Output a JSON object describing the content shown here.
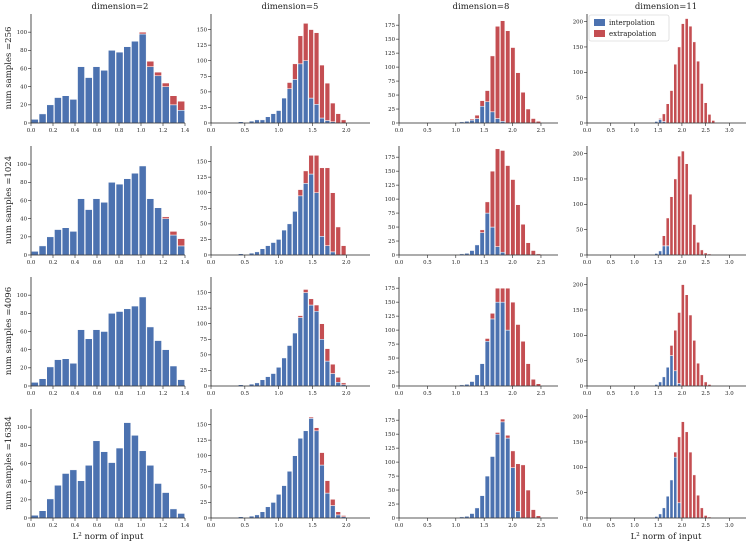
{
  "chart_data": {
    "type": "bar",
    "subtype": "stacked-histogram-grid",
    "column_titles": [
      "dimension=2",
      "dimension=5",
      "dimension=8",
      "dimension=11"
    ],
    "row_labels": [
      "num samples =256",
      "num samples =1024",
      "num samples =4096",
      "num samples =16384"
    ],
    "xlabel": "$L^2$ norm of input",
    "xlabel_prefix": "L",
    "xlabel_sup": "2",
    "xlabel_suffix": " norm of input",
    "legend": [
      "interpolation",
      "extrapolation"
    ],
    "legend_position": "top-right of last column, first row",
    "colors": {
      "interpolation": "#4c72b0",
      "extrapolation": "#c44e52",
      "axis": "#222222"
    },
    "columns": [
      {
        "xlim": [
          0,
          1.4
        ],
        "xticks": [
          0.0,
          0.2,
          0.4,
          0.6,
          0.8,
          1.0,
          1.2,
          1.4
        ],
        "xtick_labels": [
          "0.0",
          "0.2",
          "0.4",
          "0.6",
          "0.8",
          "1.0",
          "1.2",
          "1.4"
        ],
        "ylim": [
          0,
          120
        ],
        "yticks": [
          0,
          20,
          40,
          60,
          80,
          100
        ],
        "ytick_labels": [
          "0",
          "20",
          "40",
          "60",
          "80",
          "100"
        ],
        "bins": [
          0.0,
          0.07,
          0.14,
          0.21,
          0.28,
          0.35,
          0.42,
          0.49,
          0.56,
          0.63,
          0.7,
          0.77,
          0.84,
          0.91,
          0.98,
          1.05,
          1.12,
          1.19,
          1.26,
          1.33,
          1.4
        ]
      },
      {
        "xlim": [
          0,
          2.35
        ],
        "xticks": [
          0.0,
          0.5,
          1.0,
          1.5,
          2.0
        ],
        "xtick_labels": [
          "0.0",
          "0.5",
          "1.0",
          "1.5",
          "2.0"
        ],
        "ylim": [
          0,
          175
        ],
        "yticks": [
          0,
          25,
          50,
          75,
          100,
          125,
          150
        ],
        "ytick_labels": [
          "0",
          "25",
          "50",
          "75",
          "100",
          "125",
          "150"
        ],
        "bins": [
          0.4,
          0.48,
          0.56,
          0.64,
          0.72,
          0.8,
          0.88,
          0.96,
          1.04,
          1.12,
          1.2,
          1.28,
          1.36,
          1.44,
          1.52,
          1.6,
          1.68,
          1.76,
          1.84,
          1.92,
          2.0
        ]
      },
      {
        "xlim": [
          0,
          2.8
        ],
        "xticks": [
          0.0,
          0.5,
          1.0,
          1.5,
          2.0,
          2.5
        ],
        "xtick_labels": [
          "0.0",
          "0.5",
          "1.0",
          "1.5",
          "2.0",
          "2.5"
        ],
        "ylim": [
          0,
          195
        ],
        "yticks": [
          0,
          25,
          50,
          75,
          100,
          125,
          150,
          175
        ],
        "ytick_labels": [
          "0",
          "25",
          "50",
          "75",
          "100",
          "125",
          "150",
          "175"
        ],
        "bins": [
          0.7,
          0.79,
          0.88,
          0.97,
          1.06,
          1.15,
          1.24,
          1.33,
          1.42,
          1.51,
          1.6,
          1.69,
          1.78,
          1.87,
          1.96,
          2.05,
          2.14,
          2.23,
          2.32,
          2.41,
          2.5
        ]
      },
      {
        "xlim": [
          0,
          3.35
        ],
        "xticks": [
          0.0,
          0.5,
          1.0,
          1.5,
          2.0,
          2.5,
          3.0
        ],
        "xtick_labels": [
          "0.0",
          "0.5",
          "1.0",
          "1.5",
          "2.0",
          "2.5",
          "3.0"
        ],
        "ylim": [
          0,
          215
        ],
        "yticks": [
          0,
          50,
          100,
          150,
          200
        ],
        "ytick_labels": [
          "0",
          "50",
          "100",
          "150",
          "200"
        ],
        "bins": [
          1.1,
          1.18,
          1.26,
          1.34,
          1.42,
          1.5,
          1.58,
          1.66,
          1.74,
          1.82,
          1.9,
          1.98,
          2.06,
          2.14,
          2.22,
          2.3,
          2.38,
          2.46,
          2.54,
          2.62,
          2.7
        ]
      }
    ],
    "panels": [
      [
        {
          "interpolation": [
            4,
            10,
            20,
            28,
            30,
            26,
            62,
            50,
            62,
            58,
            80,
            78,
            84,
            90,
            98,
            62,
            52,
            40,
            20,
            14
          ],
          "extrapolation": [
            0,
            0,
            0,
            0,
            0,
            0,
            0,
            0,
            0,
            0,
            0,
            0,
            0,
            0,
            2,
            6,
            4,
            4,
            10,
            10
          ]
        },
        {
          "interpolation": [
            2,
            0,
            3,
            5,
            5,
            10,
            15,
            20,
            40,
            55,
            70,
            95,
            100,
            40,
            30,
            8,
            4,
            2,
            0,
            0
          ],
          "extrapolation": [
            0,
            0,
            0,
            0,
            0,
            0,
            0,
            0,
            0,
            10,
            25,
            45,
            60,
            110,
            115,
            85,
            60,
            30,
            15,
            5
          ]
        },
        {
          "interpolation": [
            0,
            0,
            0,
            0,
            2,
            3,
            5,
            8,
            30,
            38,
            20,
            8,
            3,
            0,
            0,
            0,
            0,
            0,
            0,
            0
          ],
          "extrapolation": [
            0,
            0,
            0,
            0,
            0,
            0,
            2,
            6,
            10,
            20,
            100,
            165,
            180,
            165,
            135,
            90,
            55,
            25,
            8,
            3
          ]
        },
        {
          "interpolation": [
            0,
            0,
            0,
            0,
            3,
            7,
            3,
            0,
            0,
            0,
            0,
            0,
            0,
            0,
            0,
            0,
            0,
            0,
            0,
            0
          ],
          "extrapolation": [
            0,
            0,
            0,
            0,
            0,
            2,
            15,
            38,
            64,
            116,
            150,
            196,
            206,
            191,
            160,
            122,
            78,
            40,
            17,
            5
          ]
        }
      ],
      [
        {
          "interpolation": [
            4,
            10,
            20,
            28,
            30,
            26,
            62,
            50,
            62,
            58,
            80,
            78,
            84,
            90,
            98,
            62,
            52,
            40,
            22,
            10
          ],
          "extrapolation": [
            0,
            0,
            0,
            0,
            0,
            0,
            0,
            0,
            0,
            0,
            0,
            0,
            0,
            0,
            0,
            0,
            0,
            2,
            4,
            8
          ]
        },
        {
          "interpolation": [
            2,
            0,
            3,
            5,
            10,
            15,
            20,
            25,
            40,
            50,
            70,
            95,
            115,
            130,
            100,
            30,
            15,
            5,
            0,
            0
          ],
          "extrapolation": [
            0,
            0,
            0,
            0,
            0,
            0,
            0,
            0,
            0,
            0,
            0,
            10,
            20,
            30,
            60,
            110,
            125,
            95,
            45,
            15
          ]
        },
        {
          "interpolation": [
            0,
            0,
            0,
            0,
            2,
            3,
            8,
            18,
            40,
            75,
            50,
            15,
            5,
            0,
            0,
            0,
            0,
            0,
            0,
            0
          ],
          "extrapolation": [
            0,
            0,
            0,
            0,
            0,
            0,
            0,
            0,
            5,
            20,
            100,
            175,
            182,
            160,
            135,
            90,
            55,
            22,
            8,
            2
          ]
        },
        {
          "interpolation": [
            0,
            0,
            0,
            0,
            3,
            8,
            18,
            18,
            0,
            0,
            0,
            0,
            0,
            0,
            0,
            0,
            0,
            0,
            0,
            0
          ],
          "extrapolation": [
            0,
            0,
            0,
            0,
            0,
            0,
            20,
            55,
            115,
            150,
            195,
            205,
            180,
            120,
            60,
            25,
            10,
            4,
            2,
            0
          ]
        }
      ],
      [
        {
          "interpolation": [
            4,
            8,
            21,
            29,
            30,
            25,
            62,
            52,
            62,
            60,
            80,
            82,
            85,
            88,
            98,
            65,
            50,
            40,
            22,
            7
          ],
          "extrapolation": [
            0,
            0,
            0,
            0,
            0,
            0,
            0,
            0,
            0,
            0,
            0,
            0,
            0,
            0,
            0,
            0,
            0,
            0,
            0,
            0
          ]
        },
        {
          "interpolation": [
            2,
            0,
            3,
            5,
            10,
            15,
            20,
            30,
            45,
            65,
            85,
            110,
            150,
            130,
            120,
            75,
            40,
            20,
            6,
            2
          ],
          "extrapolation": [
            0,
            0,
            0,
            0,
            0,
            0,
            0,
            0,
            0,
            0,
            0,
            3,
            5,
            10,
            10,
            25,
            20,
            15,
            8,
            3
          ]
        },
        {
          "interpolation": [
            0,
            0,
            0,
            0,
            2,
            3,
            8,
            20,
            40,
            80,
            120,
            150,
            150,
            100,
            0,
            0,
            0,
            0,
            0,
            0
          ],
          "extrapolation": [
            0,
            0,
            0,
            0,
            0,
            0,
            0,
            0,
            0,
            5,
            10,
            25,
            25,
            75,
            150,
            110,
            80,
            40,
            12,
            4
          ]
        },
        {
          "interpolation": [
            0,
            0,
            0,
            0,
            3,
            8,
            18,
            37,
            60,
            30,
            5,
            0,
            0,
            0,
            0,
            0,
            0,
            0,
            0,
            0
          ],
          "extrapolation": [
            0,
            0,
            0,
            0,
            0,
            0,
            0,
            0,
            20,
            80,
            140,
            200,
            180,
            140,
            90,
            45,
            22,
            8,
            3,
            0
          ]
        }
      ],
      [
        {
          "interpolation": [
            3,
            8,
            21,
            36,
            49,
            53,
            41,
            58,
            85,
            73,
            61,
            77,
            105,
            91,
            74,
            58,
            38,
            28,
            10,
            5
          ],
          "extrapolation": [
            0,
            0,
            0,
            0,
            0,
            0,
            0,
            0,
            0,
            0,
            0,
            0,
            0,
            0,
            0,
            0,
            0,
            0,
            0,
            0
          ]
        },
        {
          "interpolation": [
            2,
            0,
            3,
            5,
            10,
            18,
            25,
            38,
            52,
            75,
            100,
            128,
            140,
            160,
            140,
            85,
            40,
            20,
            5,
            2
          ],
          "extrapolation": [
            0,
            0,
            0,
            0,
            0,
            0,
            0,
            0,
            0,
            0,
            0,
            0,
            0,
            2,
            5,
            20,
            20,
            10,
            5,
            2
          ]
        },
        {
          "interpolation": [
            0,
            0,
            0,
            0,
            2,
            3,
            8,
            18,
            40,
            75,
            110,
            150,
            172,
            143,
            90,
            12,
            0,
            0,
            0,
            0
          ],
          "extrapolation": [
            0,
            0,
            0,
            0,
            0,
            0,
            0,
            0,
            0,
            0,
            0,
            3,
            5,
            5,
            30,
            85,
            95,
            50,
            15,
            4
          ]
        },
        {
          "interpolation": [
            0,
            0,
            0,
            0,
            3,
            8,
            20,
            43,
            75,
            120,
            30,
            0,
            0,
            0,
            0,
            0,
            0,
            0,
            0,
            0
          ],
          "extrapolation": [
            0,
            0,
            0,
            0,
            0,
            0,
            0,
            0,
            0,
            10,
            130,
            190,
            170,
            130,
            85,
            45,
            20,
            5,
            2,
            0
          ]
        }
      ]
    ]
  }
}
